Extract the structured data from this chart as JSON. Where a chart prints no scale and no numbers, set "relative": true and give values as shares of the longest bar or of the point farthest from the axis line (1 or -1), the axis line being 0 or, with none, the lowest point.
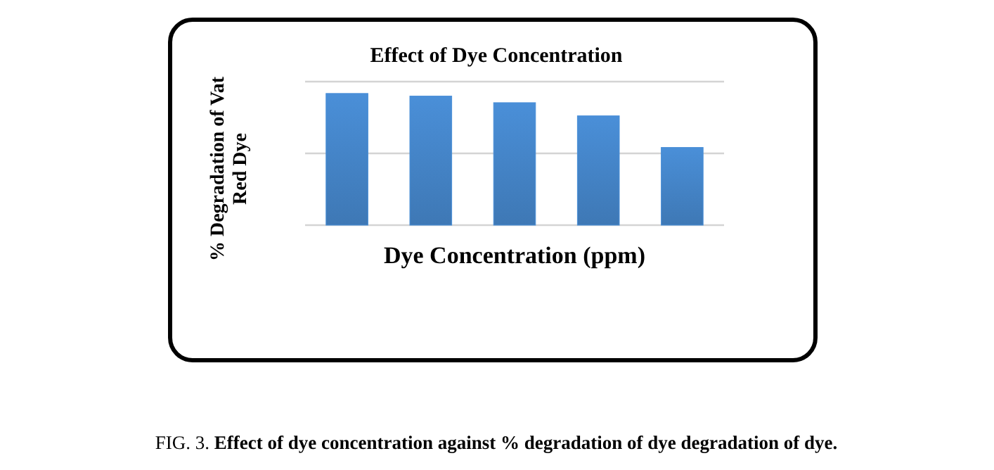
{
  "chart_data": {
    "type": "bar",
    "title": "Effect of Dye Concentration",
    "xlabel": "Dye Concentration (ppm)",
    "ylabel": "% Degradation of Vat Red Dye",
    "categories": [
      null,
      null,
      null,
      null,
      null
    ],
    "values": [
      1,
      0.98,
      0.93,
      0.83,
      0.59
    ],
    "color": "#4a8fd8",
    "relative": true,
    "ref_lines": [
      {
        "axis": "y",
        "value": 0.545,
        "color": "#d4d4d4"
      },
      {
        "axis": "y",
        "value": 1.09,
        "color": "#d4d4d4"
      }
    ],
    "annotations": [
      "FIG. 3.",
      "Effect of dye concentration against % degradation of dye degradation of dye."
    ]
  }
}
